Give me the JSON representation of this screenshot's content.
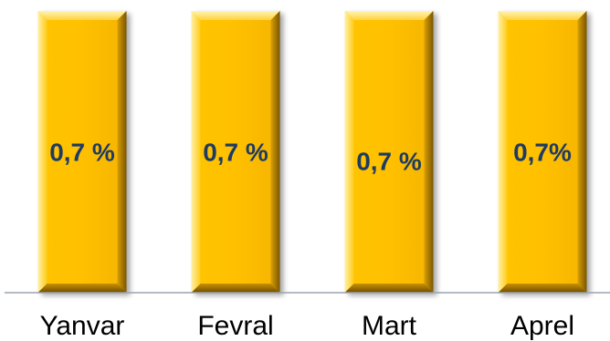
{
  "chart_data": {
    "type": "bar",
    "categories": [
      "Yanvar",
      "Fevral",
      "Mart",
      "Aprel"
    ],
    "values": [
      0.7,
      0.7,
      0.7,
      0.7
    ],
    "data_labels": [
      "0,7 %",
      "0,7 %",
      "0,7 %",
      "0,7%"
    ],
    "title": "",
    "xlabel": "",
    "ylabel": "",
    "ylim": [
      0,
      0.7
    ],
    "grid": false,
    "legend": "none",
    "colors": {
      "bar_fill": "#ffc000",
      "bar_edge_light": "#ffe57a",
      "bar_edge_dark": "#9a6e00",
      "data_label": "#1f3b63",
      "axis": "#9aa3ad"
    }
  }
}
